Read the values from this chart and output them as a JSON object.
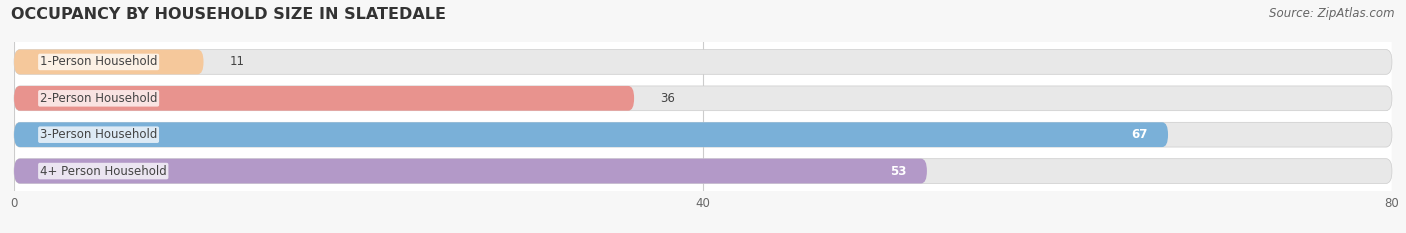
{
  "title": "OCCUPANCY BY HOUSEHOLD SIZE IN SLATEDALE",
  "source": "Source: ZipAtlas.com",
  "categories": [
    "1-Person Household",
    "2-Person Household",
    "3-Person Household",
    "4+ Person Household"
  ],
  "values": [
    11,
    36,
    67,
    53
  ],
  "bar_colors": [
    "#f5c89b",
    "#e8938e",
    "#7ab0d8",
    "#b399c8"
  ],
  "background_color": "#ffffff",
  "fig_background": "#f7f7f7",
  "bar_bg_color": "#e8e8e8",
  "xlim": [
    0,
    80
  ],
  "xticks": [
    0,
    40,
    80
  ],
  "title_fontsize": 11.5,
  "label_fontsize": 8.5,
  "value_fontsize": 8.5,
  "source_fontsize": 8.5
}
